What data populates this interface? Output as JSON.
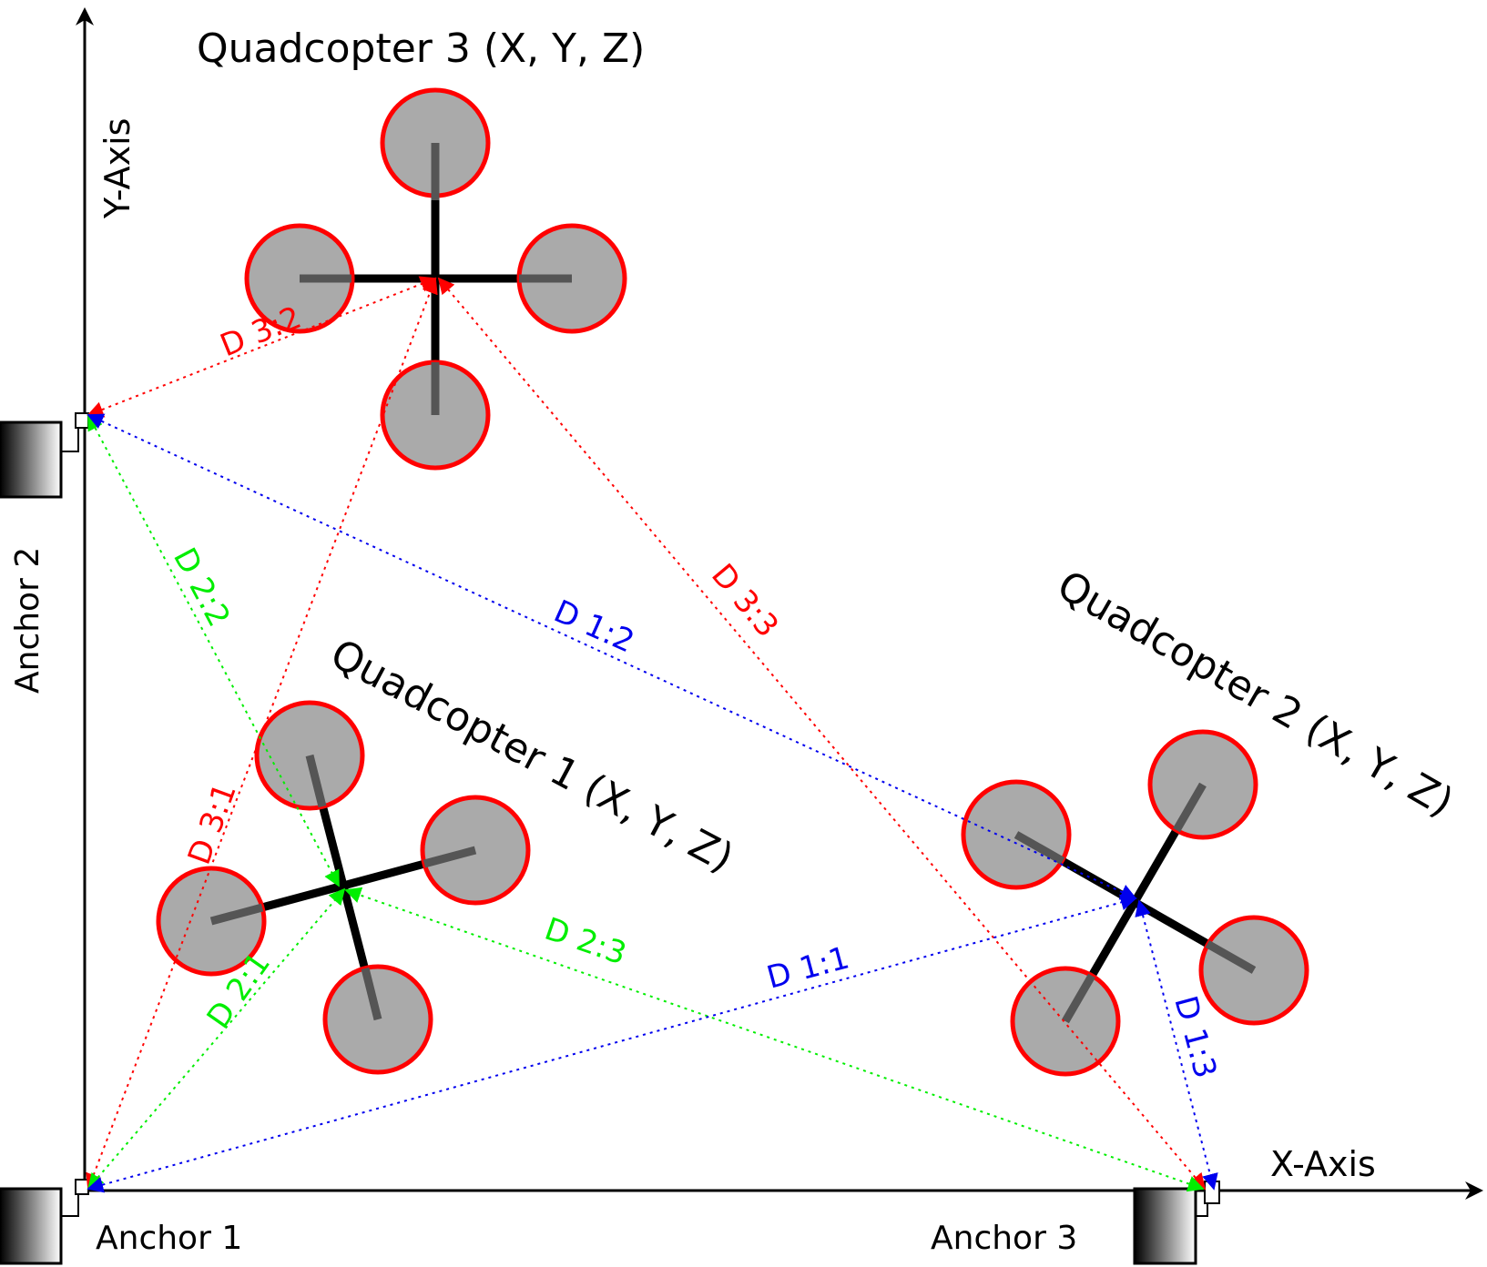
{
  "axes": {
    "x_label": "X-Axis",
    "y_label": "Y-Axis"
  },
  "anchors": {
    "anchor1": "Anchor 1",
    "anchor2": "Anchor 2",
    "anchor3": "Anchor 3"
  },
  "quadcopters": {
    "q1": "Quadcopter 1 (X, Y, Z)",
    "q2": "Quadcopter 2 (X, Y, Z)",
    "q3": "Quadcopter 3 (X, Y, Z)"
  },
  "distances": {
    "d11": "D 1:1",
    "d12": "D 1:2",
    "d13": "D 1:3",
    "d21": "D 2:1",
    "d22": "D 2:2",
    "d23": "D 2:3",
    "d31": "D 3:1",
    "d32": "D 3:2",
    "d33": "D 3:3"
  },
  "colors": {
    "quad1_links": "#00ee00",
    "quad2_links": "#0000ee",
    "quad3_links": "#ff0000",
    "rotor_fill": "#aaaaaa",
    "rotor_ring": "#ff0000",
    "frame": "#000000"
  }
}
